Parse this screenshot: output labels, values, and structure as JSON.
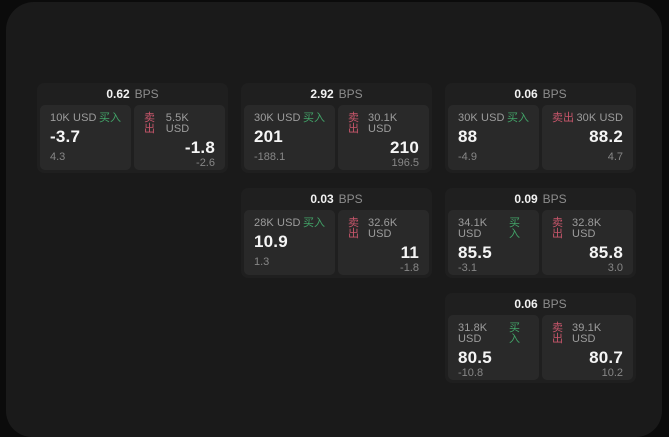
{
  "labels": {
    "bps_unit": "BPS",
    "buy": "买入",
    "sell": "卖出"
  },
  "colors": {
    "buy_green": "#42a368",
    "sell_red": "#c8566b",
    "panel_bg": "#1a1a1a",
    "card_bg": "#1f1f1f",
    "pane_bg": "#292929"
  },
  "cards": [
    {
      "bps": "0.62",
      "buy": {
        "amount": "10K USD",
        "price": "-3.7",
        "delta": "4.3"
      },
      "sell": {
        "amount": "5.5K USD",
        "price": "-1.8",
        "delta": "-2.6"
      }
    },
    {
      "bps": "2.92",
      "buy": {
        "amount": "30K USD",
        "price": "201",
        "delta": "-188.1"
      },
      "sell": {
        "amount": "30.1K USD",
        "price": "210",
        "delta": "196.5"
      }
    },
    {
      "bps": "0.06",
      "buy": {
        "amount": "30K USD",
        "price": "88",
        "delta": "-4.9"
      },
      "sell": {
        "amount": "30K USD",
        "price": "88.2",
        "delta": "4.7"
      }
    },
    {
      "bps": "0.03",
      "buy": {
        "amount": "28K USD",
        "price": "10.9",
        "delta": "1.3"
      },
      "sell": {
        "amount": "32.6K USD",
        "price": "11",
        "delta": "-1.8"
      }
    },
    {
      "bps": "0.09",
      "buy": {
        "amount": "34.1K USD",
        "price": "85.5",
        "delta": "-3.1"
      },
      "sell": {
        "amount": "32.8K USD",
        "price": "85.8",
        "delta": "3.0"
      }
    },
    {
      "bps": "0.06",
      "buy": {
        "amount": "31.8K USD",
        "price": "80.5",
        "delta": "-10.8"
      },
      "sell": {
        "amount": "39.1K USD",
        "price": "80.7",
        "delta": "10.2"
      }
    }
  ]
}
